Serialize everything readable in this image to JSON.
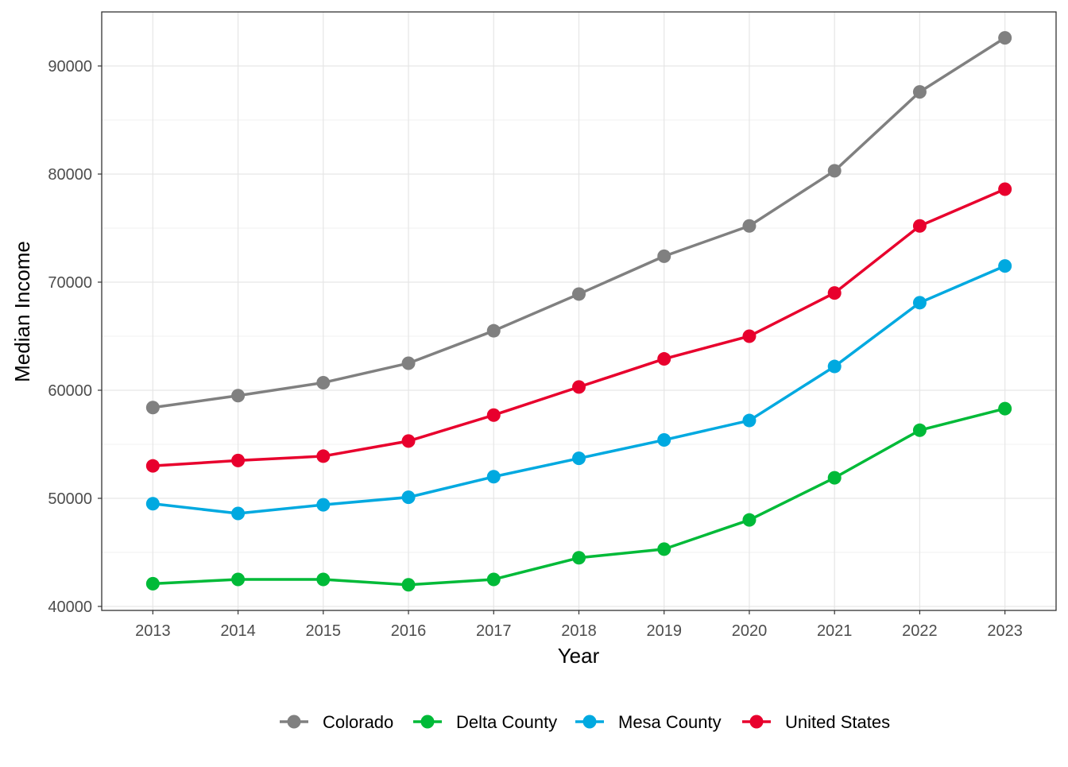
{
  "chart_data": {
    "type": "line",
    "title": "",
    "xlabel": "Year",
    "ylabel": "Median Income",
    "x": [
      2013,
      2014,
      2015,
      2016,
      2017,
      2018,
      2019,
      2020,
      2021,
      2022,
      2023
    ],
    "xlim": [
      2012.4,
      2023.6
    ],
    "ylim": [
      39630,
      95000
    ],
    "yticks": [
      40000,
      50000,
      60000,
      70000,
      80000,
      90000
    ],
    "grid": true,
    "legend_position": "bottom",
    "series": [
      {
        "name": "Colorado",
        "color": "#808080",
        "values": [
          58400,
          59500,
          60700,
          62500,
          65500,
          68900,
          72400,
          75200,
          80300,
          87600,
          92600
        ]
      },
      {
        "name": "Delta County",
        "color": "#00BA38",
        "values": [
          42100,
          42500,
          42500,
          42000,
          42500,
          44500,
          45300,
          48000,
          51900,
          56300,
          58300
        ]
      },
      {
        "name": "Mesa County",
        "color": "#00A9E0",
        "values": [
          49500,
          48600,
          49400,
          50100,
          52000,
          53700,
          55400,
          57200,
          62200,
          68100,
          71500
        ]
      },
      {
        "name": "United States",
        "color": "#E8002D",
        "values": [
          53000,
          53500,
          53900,
          55300,
          57700,
          60300,
          62900,
          65000,
          69000,
          75200,
          78600
        ]
      }
    ]
  }
}
